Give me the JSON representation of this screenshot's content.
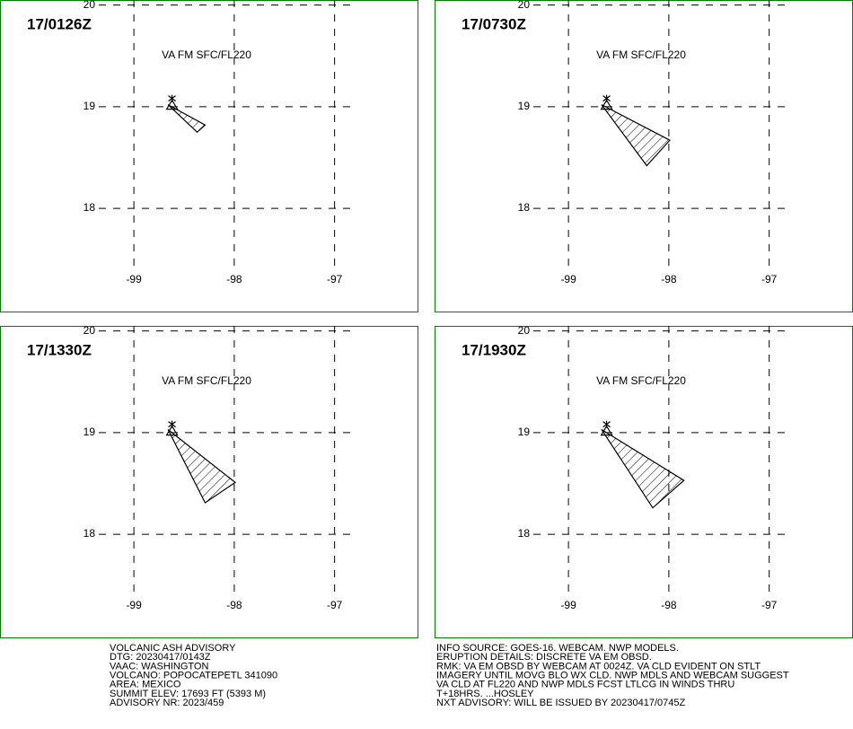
{
  "chart_data": [
    {
      "type": "map",
      "title": "17/0126Z",
      "subtitle": "VA FM SFC/FL220",
      "xlim": [
        -99.35,
        -96.8
      ],
      "ylim": [
        17.4,
        20.05
      ],
      "xticks": [
        -99,
        -98,
        -97
      ],
      "yticks": [
        18,
        19,
        20
      ],
      "volcano": {
        "lon": -98.62,
        "lat": 19.02
      },
      "polygon": {
        "lon": [
          -98.66,
          -98.29,
          -98.37
        ],
        "lat": [
          19.02,
          18.82,
          18.75
        ]
      }
    },
    {
      "type": "map",
      "title": "17/0730Z",
      "subtitle": "VA FM SFC/FL220",
      "xlim": [
        -99.35,
        -96.8
      ],
      "ylim": [
        17.4,
        20.05
      ],
      "xticks": [
        -99,
        -98,
        -97
      ],
      "yticks": [
        18,
        19,
        20
      ],
      "volcano": {
        "lon": -98.62,
        "lat": 19.02
      },
      "polygon": {
        "lon": [
          -98.67,
          -97.99,
          -98.22
        ],
        "lat": [
          19.02,
          18.67,
          18.42
        ]
      }
    },
    {
      "type": "map",
      "title": "17/1330Z",
      "subtitle": "VA FM SFC/FL220",
      "xlim": [
        -99.35,
        -96.8
      ],
      "ylim": [
        17.4,
        20.05
      ],
      "xticks": [
        -99,
        -98,
        -97
      ],
      "yticks": [
        18,
        19,
        20
      ],
      "volcano": {
        "lon": -98.62,
        "lat": 19.02
      },
      "polygon": {
        "lon": [
          -98.66,
          -97.99,
          -98.29
        ],
        "lat": [
          19.03,
          18.51,
          18.31
        ]
      }
    },
    {
      "type": "map",
      "title": "17/1930Z",
      "subtitle": "VA FM SFC/FL220",
      "xlim": [
        -99.35,
        -96.8
      ],
      "ylim": [
        17.4,
        20.05
      ],
      "xticks": [
        -99,
        -98,
        -97
      ],
      "yticks": [
        18,
        19,
        20
      ],
      "volcano": {
        "lon": -98.62,
        "lat": 19.02
      },
      "polygon": {
        "lon": [
          -98.67,
          -97.85,
          -98.16
        ],
        "lat": [
          19.03,
          18.53,
          18.26
        ]
      }
    }
  ],
  "advisory": {
    "left": [
      "VOLCANIC ASH ADVISORY",
      "DTG: 20230417/0143Z",
      "VAAC: WASHINGTON",
      "VOLCANO: POPOCATEPETL 341090",
      "AREA: MEXICO",
      "SUMMIT ELEV: 17693 FT (5393 M)",
      "ADVISORY NR: 2023/459"
    ],
    "right": [
      "INFO SOURCE: GOES-16. WEBCAM. NWP MODELS.",
      "ERUPTION DETAILS: DISCRETE VA EM OBSD.",
      "RMK: VA EM OBSD BY WEBCAM AT 0024Z. VA CLD EVIDENT ON STLT",
      "IMAGERY UNTIL MOVG BLO WX CLD. NWP MDLS AND WEBCAM SUGGEST",
      "VA CLD AT FL220 AND NWP MDLS FCST LTLCG IN WINDS THRU",
      "T+18HRS. ...HOSLEY",
      "NXT ADVISORY: WILL BE ISSUED BY 20230417/0745Z"
    ]
  }
}
